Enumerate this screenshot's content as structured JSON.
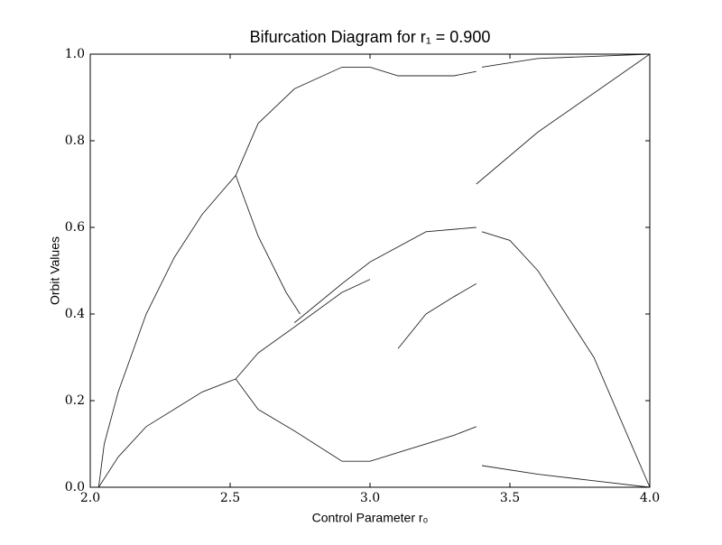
{
  "chart_data": {
    "type": "line",
    "title": "Bifurcation Diagram for r₁ = 0.900",
    "x_label": "Control Parameter r₀",
    "y_label": "Orbit Values",
    "xlim": [
      2.0,
      4.0
    ],
    "xticks": [
      {
        "value": 2.0,
        "label": "2.0"
      },
      {
        "value": 2.5,
        "label": "2.5"
      },
      {
        "value": 3.0,
        "label": "3.0"
      },
      {
        "value": 3.5,
        "label": "3.5"
      },
      {
        "value": 4.0,
        "label": "4.0"
      }
    ],
    "ylim": [
      0.0,
      1.0
    ],
    "yticks": [
      {
        "value": 0.0,
        "label": "0.0"
      },
      {
        "value": 0.2,
        "label": "0.2"
      },
      {
        "value": 0.4,
        "label": "0.4"
      },
      {
        "value": 0.6,
        "label": "0.6"
      },
      {
        "value": 0.8,
        "label": "0.8"
      },
      {
        "value": 1.0,
        "label": "1.0"
      }
    ],
    "grid": false,
    "series": [
      {
        "color": "#000000",
        "x": [
          2.03,
          2.05,
          2.1,
          2.2,
          2.3,
          2.4,
          2.52
        ],
        "values": [
          0.0,
          0.1,
          0.22,
          0.4,
          0.53,
          0.63,
          0.72
        ]
      },
      {
        "color": "#000000",
        "x": [
          2.03,
          2.1,
          2.2,
          2.3,
          2.4,
          2.52
        ],
        "values": [
          0.0,
          0.07,
          0.14,
          0.18,
          0.22,
          0.25
        ]
      },
      {
        "color": "#000000",
        "x": [
          2.52,
          2.6,
          2.73,
          2.9,
          3.0,
          3.1,
          3.3,
          3.38
        ],
        "values": [
          0.72,
          0.84,
          0.92,
          0.97,
          0.97,
          0.95,
          0.95,
          0.96
        ]
      },
      {
        "color": "#000000",
        "x": [
          2.52,
          2.6,
          2.7,
          2.75
        ],
        "values": [
          0.72,
          0.58,
          0.45,
          0.4
        ]
      },
      {
        "color": "#000000",
        "x": [
          2.52,
          2.6,
          2.73,
          2.9,
          3.0
        ],
        "values": [
          0.25,
          0.31,
          0.37,
          0.45,
          0.48
        ]
      },
      {
        "color": "#000000",
        "x": [
          2.52,
          2.6,
          2.73,
          2.9,
          3.0,
          3.1,
          3.3,
          3.38
        ],
        "values": [
          0.25,
          0.18,
          0.13,
          0.06,
          0.06,
          0.08,
          0.12,
          0.14
        ]
      },
      {
        "color": "#000000",
        "x": [
          2.73,
          2.9,
          3.0,
          3.2,
          3.38
        ],
        "values": [
          0.38,
          0.47,
          0.52,
          0.59,
          0.6
        ]
      },
      {
        "color": "#000000",
        "x": [
          3.1,
          3.2,
          3.3,
          3.38
        ],
        "values": [
          0.32,
          0.4,
          0.44,
          0.47
        ]
      },
      {
        "color": "#000000",
        "x": [
          3.38,
          3.6,
          3.8,
          4.0
        ],
        "values": [
          0.7,
          0.82,
          0.91,
          1.0
        ]
      },
      {
        "color": "#000000",
        "x": [
          3.4,
          3.5,
          3.6,
          3.8,
          4.0
        ],
        "values": [
          0.59,
          0.57,
          0.5,
          0.3,
          0.0
        ]
      },
      {
        "color": "#000000",
        "x": [
          3.4,
          3.5,
          3.6,
          3.8,
          4.0
        ],
        "values": [
          0.97,
          0.98,
          0.99,
          0.995,
          1.0
        ]
      },
      {
        "color": "#000000",
        "x": [
          3.4,
          3.6,
          3.8,
          4.0
        ],
        "values": [
          0.05,
          0.03,
          0.015,
          0.0
        ]
      }
    ]
  }
}
